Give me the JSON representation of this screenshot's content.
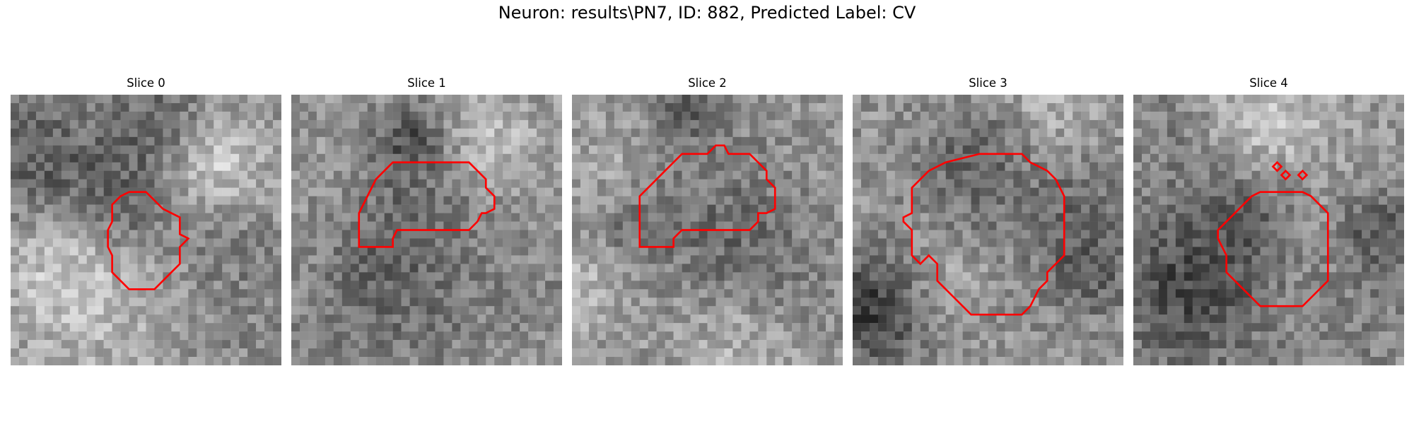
{
  "figure": {
    "title": "Neuron: results\\PN7, ID: 882, Predicted Label: CV"
  },
  "colors": {
    "contour": "#ff0000",
    "background": "#ffffff",
    "colormap": "grayscale"
  },
  "slices": [
    {
      "title": "Slice 0"
    },
    {
      "title": "Slice 1"
    },
    {
      "title": "Slice 2"
    },
    {
      "title": "Slice 3"
    },
    {
      "title": "Slice 4"
    }
  ]
}
